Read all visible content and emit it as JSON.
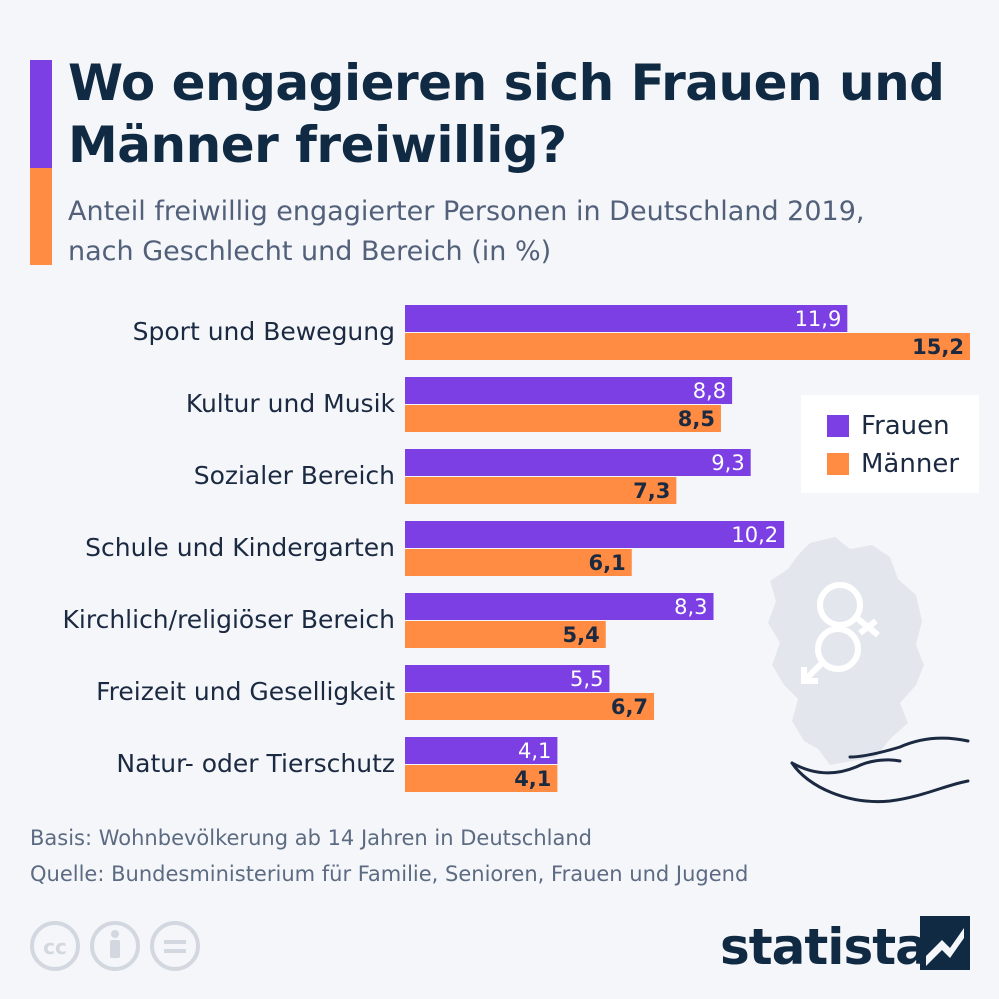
{
  "title": "Wo engagieren sich Frauen und Männer freiwillig?",
  "subtitle_line1": "Anteil freiwillig engagierter Personen in Deutschland 2019,",
  "subtitle_line2": "nach Geschlecht und Bereich (in %)",
  "legend": {
    "frauen": "Frauen",
    "maenner": "Männer"
  },
  "colors": {
    "frauen": "#7b3fe4",
    "maenner": "#ff8c42",
    "accent_purple": "#7b3fe4",
    "accent_orange": "#ff8c42"
  },
  "footer": {
    "basis": "Basis: Wohnbevölkerung ab 14 Jahren in Deutschland",
    "quelle": "Quelle: Bundesministerium für Familie, Senioren, Frauen und Jugend"
  },
  "logo_text": "statista",
  "icons": [
    "cc-icon",
    "by-icon",
    "nd-icon",
    "germany-map-icon",
    "gender-symbols-icon",
    "hand-icon",
    "statista-logo-icon"
  ],
  "chart_data": {
    "type": "bar",
    "orientation": "horizontal",
    "categories": [
      "Sport und Bewegung",
      "Kultur und Musik",
      "Sozialer Bereich",
      "Schule und Kindergarten",
      "Kirchlich/religiöser Bereich",
      "Freizeit und Geselligkeit",
      "Natur- oder Tierschutz"
    ],
    "series": [
      {
        "name": "Frauen",
        "values": [
          11.9,
          8.8,
          9.3,
          10.2,
          8.3,
          5.5,
          4.1
        ],
        "labels": [
          "11,9",
          "8,8",
          "9,3",
          "10,2",
          "8,3",
          "5,5",
          "4,1"
        ]
      },
      {
        "name": "Männer",
        "values": [
          15.2,
          8.5,
          7.3,
          6.1,
          5.4,
          6.7,
          4.1
        ],
        "labels": [
          "15,2",
          "8,5",
          "7,3",
          "6,1",
          "5,4",
          "6,7",
          "4,1"
        ]
      }
    ],
    "xlim": [
      0,
      15.2
    ],
    "grid": false,
    "legend_position": "right"
  }
}
